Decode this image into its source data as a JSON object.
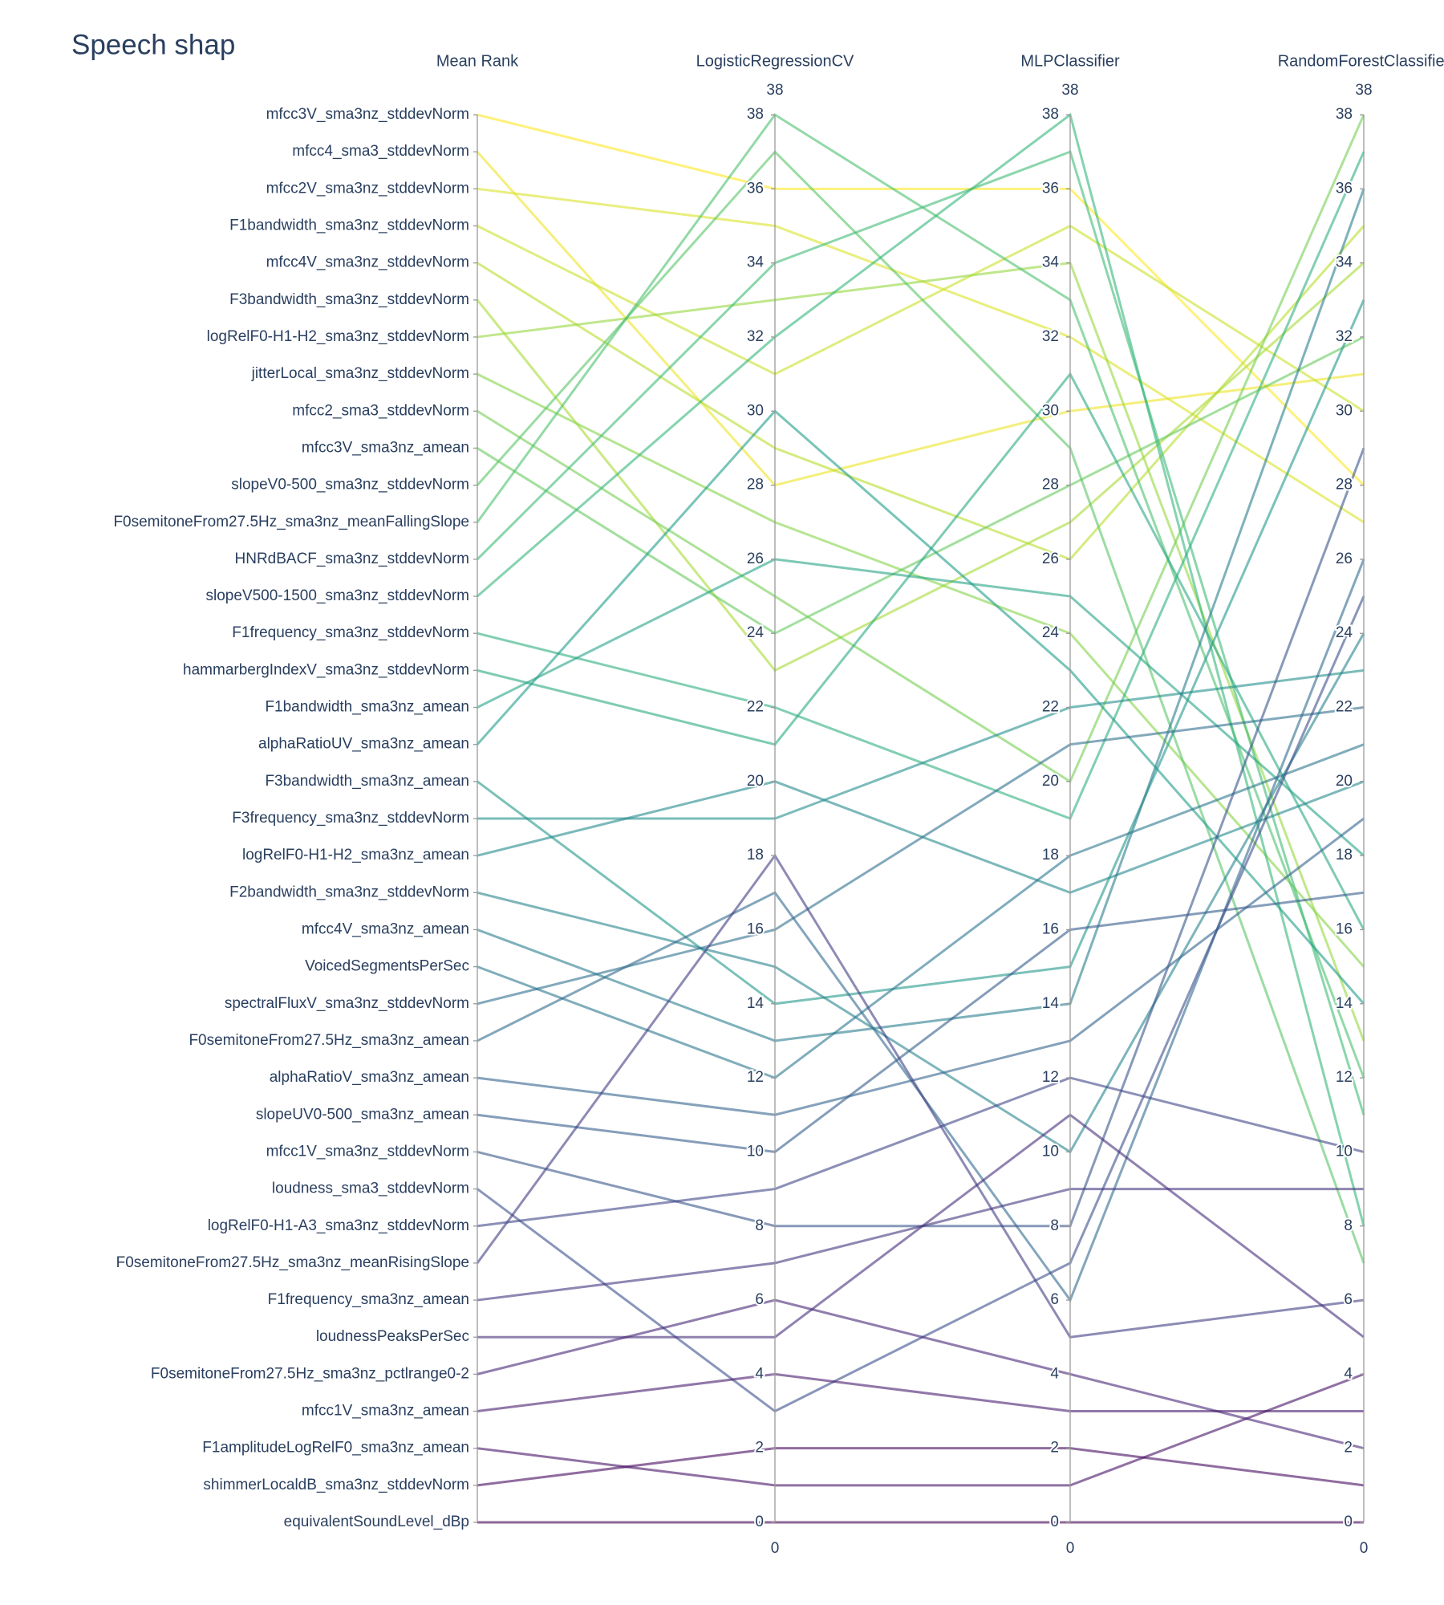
{
  "chart_data": {
    "type": "parcoords",
    "title": "Speech shap",
    "colorscale": "Viridis",
    "dimensions": [
      {
        "label": "Mean Rank",
        "categories": [
          "mfcc3V_sma3nz_stddevNorm",
          "mfcc4_sma3_stddevNorm",
          "mfcc2V_sma3nz_stddevNorm",
          "F1bandwidth_sma3nz_stddevNorm",
          "mfcc4V_sma3nz_stddevNorm",
          "F3bandwidth_sma3nz_stddevNorm",
          "logRelF0-H1-H2_sma3nz_stddevNorm",
          "jitterLocal_sma3nz_stddevNorm",
          "mfcc2_sma3_stddevNorm",
          "mfcc3V_sma3nz_amean",
          "slopeV0-500_sma3nz_stddevNorm",
          "F0semitoneFrom27.5Hz_sma3nz_meanFallingSlope",
          "HNRdBACF_sma3nz_stddevNorm",
          "slopeV500-1500_sma3nz_stddevNorm",
          "F1frequency_sma3nz_stddevNorm",
          "hammarbergIndexV_sma3nz_stddevNorm",
          "F1bandwidth_sma3nz_amean",
          "alphaRatioUV_sma3nz_amean",
          "F3bandwidth_sma3nz_amean",
          "F3frequency_sma3nz_stddevNorm",
          "logRelF0-H1-H2_sma3nz_amean",
          "F2bandwidth_sma3nz_stddevNorm",
          "mfcc4V_sma3nz_amean",
          "VoicedSegmentsPerSec",
          "spectralFluxV_sma3nz_stddevNorm",
          "F0semitoneFrom27.5Hz_sma3nz_amean",
          "alphaRatioV_sma3nz_amean",
          "slopeUV0-500_sma3nz_amean",
          "mfcc1V_sma3nz_stddevNorm",
          "loudness_sma3_stddevNorm",
          "logRelF0-H1-A3_sma3nz_stddevNorm",
          "F0semitoneFrom27.5Hz_sma3nz_meanRisingSlope",
          "F1frequency_sma3nz_amean",
          "loudnessPeaksPerSec",
          "F0semitoneFrom27.5Hz_sma3nz_pctlrange0-2",
          "mfcc1V_sma3nz_amean",
          "F1amplitudeLogRelF0_sma3nz_amean",
          "shimmerLocaldB_sma3nz_stddevNorm",
          "equivalentSoundLevel_dBp"
        ]
      },
      {
        "label": "LogisticRegressionCV",
        "range": [
          0,
          38
        ],
        "ticks": [
          0,
          2,
          4,
          6,
          8,
          10,
          12,
          14,
          16,
          18,
          20,
          22,
          24,
          26,
          28,
          30,
          32,
          34,
          36,
          38
        ],
        "values": [
          36,
          28,
          35,
          31,
          29,
          23,
          33,
          27,
          25,
          24,
          37,
          38,
          34,
          32,
          22,
          21,
          26,
          30,
          14,
          19,
          20,
          15,
          13,
          12,
          16,
          17,
          11,
          10,
          8,
          3,
          9,
          18,
          7,
          5,
          6,
          4,
          1,
          2,
          0
        ]
      },
      {
        "label": "MLPClassifier",
        "range": [
          0,
          38
        ],
        "ticks": [
          0,
          2,
          4,
          6,
          8,
          10,
          12,
          14,
          16,
          18,
          20,
          22,
          24,
          26,
          28,
          30,
          32,
          34,
          36,
          38
        ],
        "values": [
          36,
          30,
          32,
          35,
          26,
          27,
          34,
          24,
          20,
          28,
          29,
          33,
          37,
          38,
          19,
          31,
          25,
          23,
          15,
          22,
          17,
          10,
          14,
          18,
          21,
          6,
          13,
          16,
          8,
          7,
          12,
          5,
          9,
          11,
          4,
          3,
          1,
          2,
          0
        ]
      },
      {
        "label": "RandomForestClassifier",
        "range": [
          0,
          38
        ],
        "ticks": [
          0,
          2,
          4,
          6,
          8,
          10,
          12,
          14,
          16,
          18,
          20,
          22,
          24,
          26,
          28,
          30,
          32,
          34,
          36,
          38
        ],
        "values": [
          28,
          31,
          27,
          30,
          35,
          34,
          13,
          15,
          38,
          32,
          7,
          12,
          11,
          8,
          37,
          16,
          18,
          14,
          33,
          23,
          20,
          24,
          36,
          21,
          22,
          26,
          19,
          17,
          29,
          25,
          10,
          6,
          9,
          5,
          2,
          3,
          4,
          1,
          0
        ]
      }
    ]
  }
}
